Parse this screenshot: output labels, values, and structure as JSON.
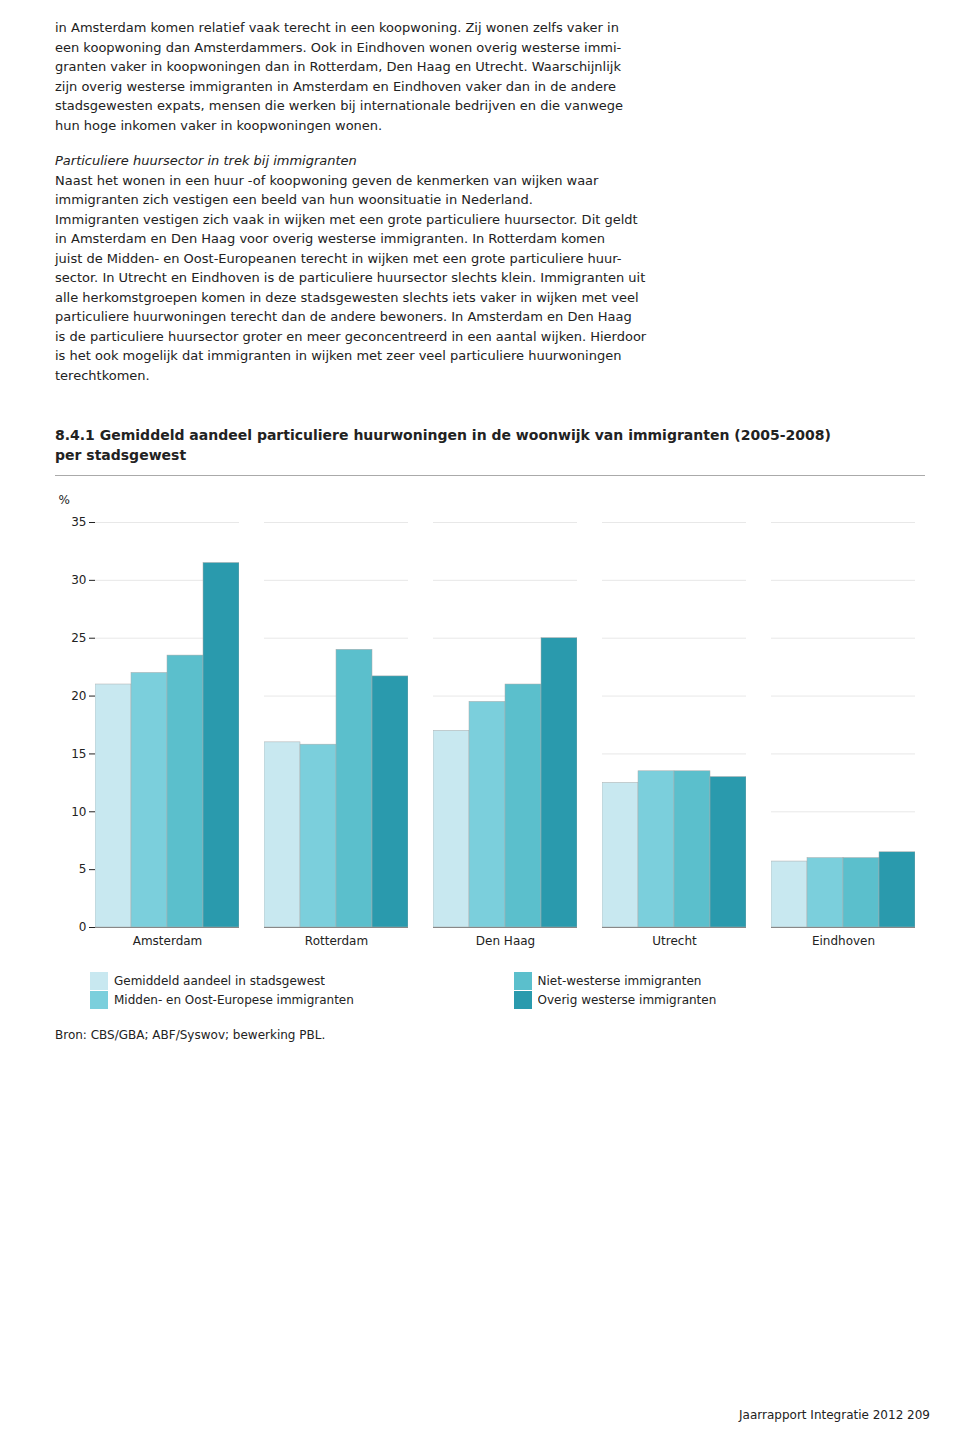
{
  "page_text": {
    "paragraph1": [
      "in Amsterdam komen relatief vaak terecht in een koopwoning. Zij wonen zelfs vaker in",
      "een koopwoning dan Amsterdammers. Ook in Eindhoven wonen overig westerse immi-",
      "granten vaker in koopwoningen dan in Rotterdam, Den Haag en Utrecht. Waarschijnlijk",
      "zijn overig westerse immigranten in Amsterdam en Eindhoven vaker dan in de andere",
      "stadsgewesten expats, mensen die werken bij internationale bedrijven en die vanwege",
      "hun hoge inkomen vaker in koopwoningen wonen."
    ],
    "paragraph2_title": "Particuliere huursector in trek bij immigranten",
    "paragraph2": [
      "Naast het wonen in een huur -of koopwoning geven de kenmerken van wijken waar",
      "immigranten zich vestigen een beeld van hun woonsituatie in Nederland.",
      "Immigranten vestigen zich vaak in wijken met een grote particuliere huursector. Dit geldt",
      "in Amsterdam en Den Haag voor overig westerse immigranten. In Rotterdam komen",
      "juist de Midden- en Oost-Europeanen terecht in wijken met een grote particuliere huur-",
      "sector. In Utrecht en Eindhoven is de particuliere huursector slechts klein. Immigranten uit",
      "alle herkomstgroepen komen in deze stadsgewesten slechts iets vaker in wijken met veel",
      "particuliere huurwoningen terecht dan de andere bewoners. In Amsterdam en Den Haag",
      "is de particuliere huursector groter en meer geconcentreerd in een aantal wijken. Hierdoor",
      "is het ook mogelijk dat immigranten in wijken met zeer veel particuliere huurwoningen",
      "terechtkomen."
    ],
    "footer": "Jaarrapport Integratie 2012  209"
  },
  "chart_data": {
    "type": "bar",
    "title": "8.4.1 Gemiddeld aandeel particuliere huurwoningen in de woonwijk van immigranten (2005-2008)",
    "subtitle": "per stadsgewest",
    "ylabel": "%",
    "categories": [
      "Amsterdam",
      "Rotterdam",
      "Den Haag",
      "Utrecht",
      "Eindhoven"
    ],
    "series": [
      {
        "name": "Gemiddeld aandeel in stadsgewest",
        "color": "#c8e8f0",
        "values": [
          21.0,
          16.0,
          17.0,
          12.5,
          5.7
        ]
      },
      {
        "name": "Midden- en Oost-Europese immigranten",
        "color": "#7bcfdc",
        "values": [
          22.0,
          15.8,
          19.5,
          13.5,
          6.0
        ]
      },
      {
        "name": "Niet-westerse immigranten",
        "color": "#5bbfcc",
        "values": [
          23.5,
          24.0,
          21.0,
          13.5,
          6.0
        ]
      },
      {
        "name": "Overig westerse immigranten",
        "color": "#2a9aad",
        "values": [
          31.5,
          21.7,
          25.0,
          13.0,
          6.5
        ]
      }
    ],
    "ylim": [
      0,
      35
    ],
    "yticks": [
      0,
      5,
      10,
      15,
      20,
      25,
      30,
      35
    ],
    "grid": true,
    "legend": "bottom",
    "caption": "Bron: CBS/GBA; ABF/Syswov; bewerking PBL."
  }
}
